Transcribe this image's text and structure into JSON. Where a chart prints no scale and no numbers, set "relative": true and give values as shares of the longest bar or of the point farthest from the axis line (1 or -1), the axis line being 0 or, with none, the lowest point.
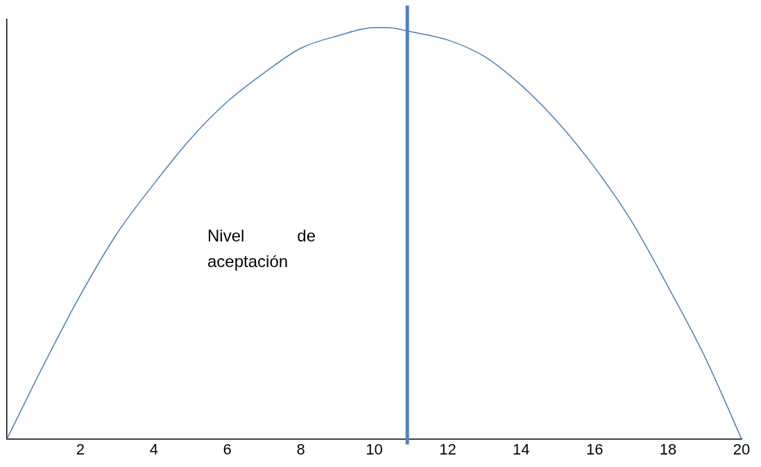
{
  "chart_data": {
    "type": "line",
    "relative": true,
    "x": [
      0,
      1,
      2,
      3,
      4,
      5,
      6,
      7,
      8,
      9,
      10,
      10.36,
      11,
      12,
      13,
      14,
      15,
      16,
      17,
      18,
      19,
      20
    ],
    "series": [
      {
        "color": "#4a7ebb",
        "values": [
          0,
          0.18,
          0.35,
          0.5,
          0.62,
          0.73,
          0.82,
          0.89,
          0.95,
          0.98,
          1,
          1,
          0.99,
          0.97,
          0.93,
          0.86,
          0.77,
          0.66,
          0.53,
          0.37,
          0.2,
          0
        ]
      }
    ],
    "xlim": [
      0,
      20
    ],
    "xticks": [
      2,
      4,
      6,
      8,
      10,
      12,
      14,
      16,
      18,
      20
    ],
    "ref_lines": [
      {
        "axis": "x",
        "value": 10.9,
        "color": "#4f81bd"
      }
    ],
    "annotations": [
      "Nivel de aceptación"
    ],
    "grid": false,
    "legend": false,
    "marker": "none",
    "line_style": "solid"
  }
}
